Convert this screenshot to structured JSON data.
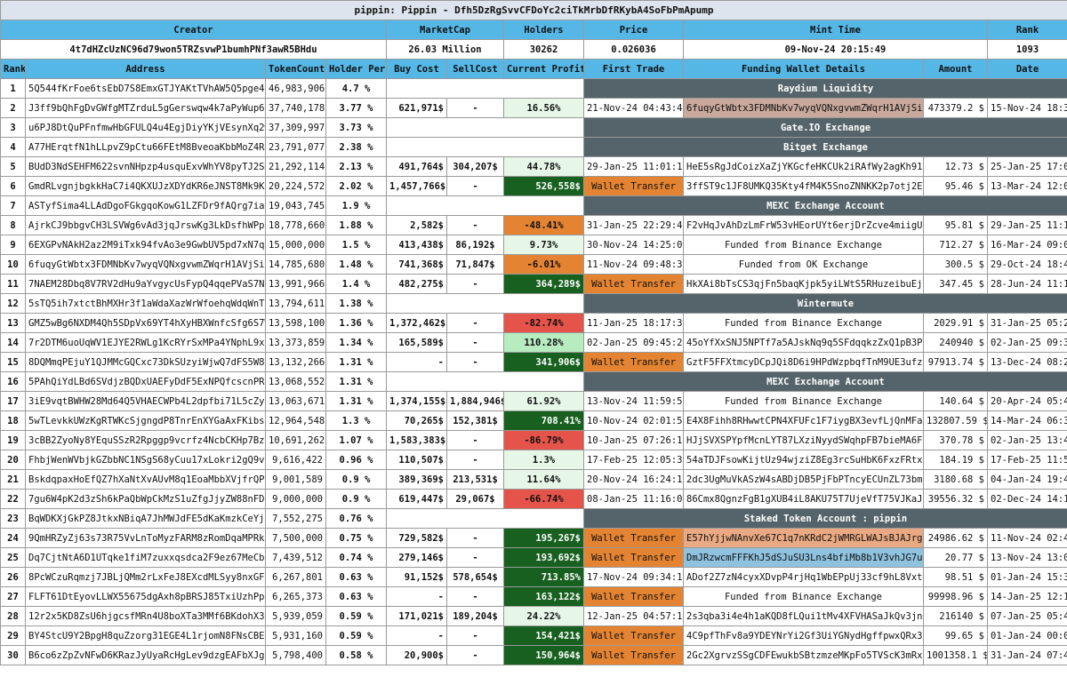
{
  "title": "pippin: Pippin - Dfh5DzRgSvvCFDoYc2ciTkMrbDfRKybA4SoFbPmApump",
  "info_headers": [
    "Creator",
    "MarketCap",
    "Holders",
    "Price",
    "Mint Time",
    "Rank"
  ],
  "info_values": [
    "4t7dHZcUzNC96d79won5TRZsvwP1bumhPNf3awR5BHdu",
    "26.03 Million",
    "30262",
    "0.026036",
    "09-Nov-24 20:15:49",
    "1093"
  ],
  "columns": [
    "Rank",
    "Address",
    "TokenCount",
    "Holder Perc",
    "Buy Cost",
    "SellCost",
    "Current Profit",
    "First Trade",
    "Funding Wallet Details",
    "Amount",
    "Date"
  ],
  "rows": [
    {
      "rank": "1",
      "address": "5Q544fKrFoe6tsEbD7S8EmxGTJYAKtTVhAW5Q5pge4j1",
      "token_count": "46,983,906",
      "holder_perc": "4.7 %",
      "section": "Raydium Liquidity"
    },
    {
      "rank": "2",
      "address": "J3ff9bQhFgDvGWfgMTZrduL5gGerswqw4k7aPyWup6NS",
      "token_count": "37,740,178",
      "holder_perc": "3.77 %",
      "buy_cost": "621,971$",
      "sell_cost": "-",
      "profit": "16.56%",
      "profit_color": "g-light",
      "first_trade": "21-Nov-24 04:43:40",
      "funding": "6fuqyGtWbtx3FDMNbKv7wyqVQNxgvwmZWqrH1AVjSiDC",
      "funding_color": "hl-pink",
      "amount": "473379.2 $",
      "date": "15-Nov-24 18:39"
    },
    {
      "rank": "3",
      "address": "u6PJ8DtQuPFnfmwHbGFULQ4u4EgjDiyYKjVEsynXq2w",
      "token_count": "37,309,997",
      "holder_perc": "3.73 %",
      "section": "Gate.IO Exchange"
    },
    {
      "rank": "4",
      "address": "A77HErqtfN1hLLpvZ9pCtu66FEtM8BveoaKbbMoZ4RiR",
      "token_count": "23,791,077",
      "holder_perc": "2.38 %",
      "section": "Bitget Exchange"
    },
    {
      "rank": "5",
      "address": "BUdD3NdSEHFM622svnNHpzp4usquExvWhYV8pyTJ2SM5",
      "token_count": "21,292,114",
      "holder_perc": "2.13 %",
      "buy_cost": "491,764$",
      "sell_cost": "304,207$",
      "profit": "44.78%",
      "profit_color": "g-light",
      "first_trade": "29-Jan-25 11:01:10",
      "funding": "HeE5sRgJdCoizXaZjYKGcfeHKCUk2iRAfWy2agKh91Cy",
      "amount": "12.73 $",
      "date": "25-Jan-25 17:02"
    },
    {
      "rank": "6",
      "address": "GmdRLvgnjbgkkHaC7i4QKXUJzXDYdKR6eJNST8Mk9Kfu",
      "token_count": "20,224,572",
      "holder_perc": "2.02 %",
      "buy_cost": "1,457,766$",
      "sell_cost": "-",
      "profit": "526,558$",
      "profit_color": "g-dark",
      "first_trade": "Wallet Transfer",
      "first_trade_color": "wt",
      "funding": "3ffST9c1JF8UMKQ35Kty4fM4K5SnoZNNKK2p7otj2ET7",
      "amount": "95.46 $",
      "date": "13-Mar-24 12:06"
    },
    {
      "rank": "7",
      "address": "ASTyfSima4LLAdDgoFGkgqoKowG1LZFDr9fAQrg7iaJZ",
      "token_count": "19,043,745",
      "holder_perc": "1.9 %",
      "section": "MEXC Exchange Account"
    },
    {
      "rank": "8",
      "address": "AjrkCJ9bbgvCH3LSVWg6vAd3jqJrswKg3LkDsfhWPpDc",
      "token_count": "18,778,660",
      "holder_perc": "1.88 %",
      "buy_cost": "2,582$",
      "sell_cost": "-",
      "profit": "-48.41%",
      "profit_color": "o",
      "first_trade": "31-Jan-25 22:29:45",
      "funding": "F2vHqJvAhDzLmFrW53vHEorUYt6erjDrZcve4miigUhW",
      "amount": "95.81 $",
      "date": "29-Jan-25 11:16"
    },
    {
      "rank": "9",
      "address": "6EXGPvNAkH2az2M9iTxk94fvAo3e9GwbUV5pd7xN7q1p",
      "token_count": "15,000,000",
      "holder_perc": "1.5 %",
      "buy_cost": "413,438$",
      "sell_cost": "86,192$",
      "profit": "9.73%",
      "profit_color": "g-light",
      "first_trade": "30-Nov-24 14:25:04",
      "funding": "Funded from Binance Exchange",
      "funding_center": true,
      "amount": "712.27 $",
      "date": "16-Mar-24 09:03"
    },
    {
      "rank": "10",
      "address": "6fuqyGtWbtx3FDMNbKv7wyqVQNxgvwmZWqrH1AVjSiDC",
      "token_count": "14,785,680",
      "holder_perc": "1.48 %",
      "buy_cost": "741,368$",
      "sell_cost": "71,847$",
      "profit": "-6.01%",
      "profit_color": "o",
      "first_trade": "11-Nov-24 09:48:37",
      "funding": "Funded from OK Exchange",
      "funding_center": true,
      "amount": "300.5 $",
      "date": "29-Oct-24 18:43"
    },
    {
      "rank": "11",
      "address": "7NAEM28Dbq8V7RV2dHu9aYvgycUsFypQ4qqePVaS7N9m",
      "token_count": "13,991,966",
      "holder_perc": "1.4 %",
      "buy_cost": "482,275$",
      "sell_cost": "-",
      "profit": "364,289$",
      "profit_color": "g-dark",
      "first_trade": "Wallet Transfer",
      "first_trade_color": "wt",
      "funding": "HkXAi8bTsCS3qjFn5baqKjpk5yiLWtS5RHuzeibuEjnb",
      "amount": "347.45 $",
      "date": "28-Jun-24 11:18"
    },
    {
      "rank": "12",
      "address": "5sTQ5ih7xtctBhMXHr3f1aWdaXazWrWfoehqWdqWnTFP",
      "token_count": "13,794,611",
      "holder_perc": "1.38 %",
      "section": "Wintermute"
    },
    {
      "rank": "13",
      "address": "GMZ5wBg6NXDM4Qh5SDpVx69YT4hXyHBXWnfcSfg6S7Ww",
      "token_count": "13,598,100",
      "holder_perc": "1.36 %",
      "buy_cost": "1,372,462$",
      "sell_cost": "-",
      "profit": "-82.74%",
      "profit_color": "red",
      "first_trade": "11-Jan-25 18:17:37",
      "funding": "Funded from Binance Exchange",
      "funding_center": true,
      "amount": "2029.91 $",
      "date": "31-Jan-25 05:26"
    },
    {
      "rank": "14",
      "address": "7r2DTM6uoUqWV1EJYE2RWLg1KcRYrSxMPa4YNphL9x1A",
      "token_count": "13,373,859",
      "holder_perc": "1.34 %",
      "buy_cost": "165,589$",
      "sell_cost": "-",
      "profit": "110.28%",
      "profit_color": "g-mid",
      "first_trade": "02-Jan-25 09:45:24",
      "funding": "45oYfXxSNJ5NPTf7a5AJskNq9q5SFdqqkzZxQ1pB3PyG",
      "amount": "240940 $",
      "date": "02-Jan-25 09:36"
    },
    {
      "rank": "15",
      "address": "8DQMmqPEjuY1QJMMcGQCxc73DkSUzyiWjwQ7dFS5W8SS",
      "token_count": "13,132,266",
      "holder_perc": "1.31 %",
      "buy_cost": "-",
      "sell_cost": "-",
      "profit": "341,906$",
      "profit_color": "g-dark",
      "first_trade": "Wallet Transfer",
      "first_trade_color": "wt",
      "funding": "GztF5FFXtmcyDCpJQi8D6i9HPdWzpbqfTnM9UE3ufzxF",
      "amount": "97913.74 $",
      "date": "13-Dec-24 08:28"
    },
    {
      "rank": "16",
      "address": "5PAhQiYdLBd6SVdjzBQDxUAEFyDdF5ExNPQfcscnPRj5",
      "token_count": "13,068,552",
      "holder_perc": "1.31 %",
      "section": "MEXC Exchange Account"
    },
    {
      "rank": "17",
      "address": "3iE9vqtBWHW28Md64Q5VHAECWPb4L2dpfbi71L5cZyeu",
      "token_count": "13,063,671",
      "holder_perc": "1.31 %",
      "buy_cost": "1,374,155$",
      "sell_cost": "1,884,946$",
      "profit": "61.92%",
      "profit_color": "g-light",
      "first_trade": "13-Nov-24 11:59:53",
      "funding": "Funded from Binance Exchange",
      "funding_center": true,
      "amount": "140.64 $",
      "date": "20-Apr-24 05:48"
    },
    {
      "rank": "18",
      "address": "5wTLevkkUWzKgRTWKcSjgngdP8TnrEnXYGaAxFKibsS5",
      "token_count": "12,964,548",
      "holder_perc": "1.3 %",
      "buy_cost": "70,265$",
      "sell_cost": "152,381$",
      "profit": "708.41%",
      "profit_color": "g-dark",
      "first_trade": "10-Nov-24 02:01:56",
      "funding": "E4X8Fihh8RHwwtCPN4XFUFc1F7iygBX3evfLjQnMFak9",
      "amount": "132807.59 $",
      "date": "14-Mar-24 06:33"
    },
    {
      "rank": "19",
      "address": "3cBB2ZyoNy8YEquSSzR2Rpggp9vcrfz4NcbCKHp7BzvT",
      "token_count": "10,691,262",
      "holder_perc": "1.07 %",
      "buy_cost": "1,583,383$",
      "sell_cost": "-",
      "profit": "-86.79%",
      "profit_color": "red",
      "first_trade": "10-Jan-25 07:26:14",
      "funding": "HJjSVXSPYpfMcnLYT87LXziNyydSWqhpFB7bieMA6FZS",
      "amount": "370.78 $",
      "date": "02-Jan-25 13:43"
    },
    {
      "rank": "20",
      "address": "FhbjWenWVbjkGZbbNC1NSgS68yCuu17xLokri2gQ9vJb",
      "token_count": "9,616,422",
      "holder_perc": "0.96 %",
      "buy_cost": "110,507$",
      "sell_cost": "-",
      "profit": "1.3%",
      "profit_color": "g-light",
      "first_trade": "17-Feb-25 12:05:33",
      "funding": "54aTDJFsowKijtUz94wjziZ8Eg3rcSuHbK6FxzFRtx2b",
      "amount": "184.19 $",
      "date": "17-Feb-25 11:58"
    },
    {
      "rank": "21",
      "address": "BskdqpaxHoEfQZ7hXaNtXvAUvM8q1EoaMbbXVjfrQPZm",
      "token_count": "9,001,589",
      "holder_perc": "0.9 %",
      "buy_cost": "389,369$",
      "sell_cost": "213,531$",
      "profit": "11.64%",
      "profit_color": "g-light",
      "first_trade": "20-Nov-24 16:24:10",
      "funding": "2dc3UgMuVkASzW4sABDjDB5PjFbPTncyECUnZL73bmQR",
      "amount": "3180.68 $",
      "date": "04-Jan-24 19:45"
    },
    {
      "rank": "22",
      "address": "7gu6W4pK2d3zSh6kPaQbWpCkMzS1uZfgJjyZW88nFD1x",
      "token_count": "9,000,000",
      "holder_perc": "0.9 %",
      "buy_cost": "619,447$",
      "sell_cost": "29,067$",
      "profit": "-66.74%",
      "profit_color": "red",
      "first_trade": "08-Jan-25 11:16:04",
      "funding": "86Cmx8QgnzFgB1gXUB4iL8AKU75T7UjeVfT75VJKaJ73",
      "amount": "39556.32 $",
      "date": "02-Dec-24 14:18"
    },
    {
      "rank": "23",
      "address": "BqWDKXjGkPZ8JtkxNBiqA7JhMWJdFE5dKaKmzkCeYjCn",
      "token_count": "7,552,275",
      "holder_perc": "0.76 %",
      "section": "Staked Token Account : pippin"
    },
    {
      "rank": "24",
      "address": "9QmHRZyZj63s73R75VvLnToMyzFARM8zRomDqaMPRknH",
      "token_count": "7,500,000",
      "holder_perc": "0.75 %",
      "buy_cost": "729,582$",
      "sell_cost": "-",
      "profit": "195,267$",
      "profit_color": "g-dark",
      "first_trade": "Wallet Transfer",
      "first_trade_color": "wt",
      "funding": "E57hYjjwNAnvXe67C1q7nKRdC2jWMRGLWAJsBJAJrgzR",
      "funding_color": "hl-peach",
      "amount": "24986.62 $",
      "date": "11-Nov-24 02:44"
    },
    {
      "rank": "25",
      "address": "Dq7CjtNtA6D1UTqke1fiM7zuxxqsdca2F9ez67MeCbQ8",
      "token_count": "7,439,512",
      "holder_perc": "0.74 %",
      "buy_cost": "279,146$",
      "sell_cost": "-",
      "profit": "193,692$",
      "profit_color": "g-dark",
      "first_trade": "Wallet Transfer",
      "first_trade_color": "wt",
      "funding": "DmJRzwcmFFFKhJ5dSJuSU3Lns4bfiMb8b1V3vhJG7uLH",
      "funding_color": "hl-blue",
      "amount": "20.77 $",
      "date": "13-Nov-24 13:09"
    },
    {
      "rank": "26",
      "address": "8PcWCzuRqmzj7JBLjQMm2rLxFeJ8EXcdMLSyy8nxGFt2",
      "token_count": "6,267,801",
      "holder_perc": "0.63 %",
      "buy_cost": "91,152$",
      "sell_cost": "578,654$",
      "profit": "713.85%",
      "profit_color": "g-dark",
      "first_trade": "17-Nov-24 09:34:18",
      "funding": "ADof2Z7zN4cyxXDvpP4rjHq1WbEPpUj33cf9hL8VxtM1",
      "amount": "98.51 $",
      "date": "01-Jan-24 15:31"
    },
    {
      "rank": "27",
      "address": "FLFT61DtEyovLLWX55675dgAxh8pBRSJ85TxiUzhPpvE",
      "token_count": "6,265,373",
      "holder_perc": "0.63 %",
      "buy_cost": "-",
      "sell_cost": "-",
      "profit": "163,122$",
      "profit_color": "g-dark",
      "first_trade": "Wallet Transfer",
      "first_trade_color": "wt",
      "funding": "Funded from Binance Exchange",
      "funding_center": true,
      "amount": "99998.96 $",
      "date": "14-Jan-25 12:13"
    },
    {
      "rank": "28",
      "address": "12r2x5KD8ZsU6hjgcsfMRn4U8boXTa3MMf6BKdohX3Uw",
      "token_count": "5,939,059",
      "holder_perc": "0.59 %",
      "buy_cost": "171,021$",
      "sell_cost": "189,204$",
      "profit": "24.22%",
      "profit_color": "g-light",
      "first_trade": "12-Jan-25 04:57:15",
      "funding": "2s3qba3i4e4h1aKQD8fLQui1tMv4XFVHASaJkQv3jnby",
      "amount": "216140 $",
      "date": "07-Jan-25 05:43"
    },
    {
      "rank": "29",
      "address": "BY4StcU9Y2BpgH8quZzorg31EGE4L1rjomN8FNsCBEcx",
      "token_count": "5,931,160",
      "holder_perc": "0.59 %",
      "buy_cost": "-",
      "sell_cost": "-",
      "profit": "154,421$",
      "profit_color": "g-dark",
      "first_trade": "Wallet Transfer",
      "first_trade_color": "wt",
      "funding": "4C9pfThFv8a9YDEYNrYi2Gf3UiYGNydHgffpwxQRx3kJ",
      "amount": "99.65 $",
      "date": "01-Jan-24 00:00"
    },
    {
      "rank": "30",
      "address": "B6co6zZpZvNFwD6KRazJyUyaRcHgLev9dzgEAFbXJg3R",
      "token_count": "5,798,400",
      "holder_perc": "0.58 %",
      "buy_cost": "20,900$",
      "sell_cost": "-",
      "profit": "150,964$",
      "profit_color": "g-dark",
      "first_trade": "Wallet Transfer",
      "first_trade_color": "wt",
      "funding": "2Gc2XgrvzSSgCDFEwukbSBtzmzeMKpFo5TVScK3mRxNQ",
      "amount": "1001358.1 $",
      "date": "31-Jan-24 07:44"
    }
  ]
}
